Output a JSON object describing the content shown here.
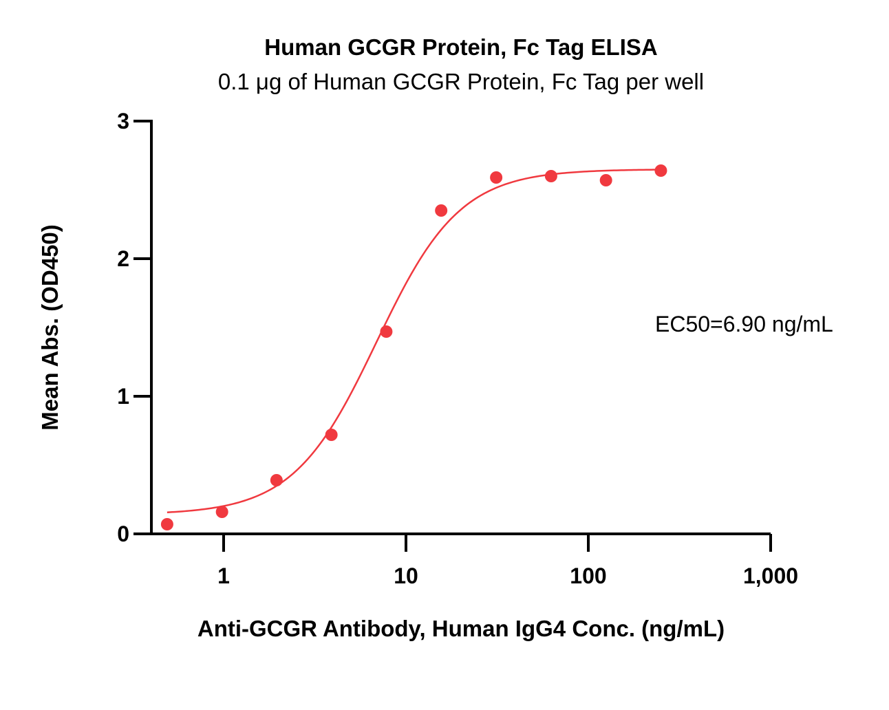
{
  "chart_data": {
    "type": "scatter",
    "title": "Human GCGR Protein, Fc Tag ELISA",
    "subtitle": "0.1 μg of Human GCGR Protein, Fc Tag per well",
    "xlabel": "Anti-GCGR Antibody, Human IgG4 Conc. (ng/mL)",
    "ylabel": "Mean Abs. (OD450)",
    "x_scale": "log",
    "xlim": [
      0.4,
      1000
    ],
    "ylim": [
      0,
      3
    ],
    "x_ticks": [
      1,
      10,
      100,
      1000
    ],
    "x_tick_labels": [
      "1",
      "10",
      "100",
      "1,000"
    ],
    "y_ticks": [
      0,
      1,
      2,
      3
    ],
    "y_tick_labels": [
      "0",
      "1",
      "2",
      "3"
    ],
    "series": [
      {
        "color": "#f0393f",
        "x": [
          0.49,
          0.98,
          1.95,
          3.9,
          7.8,
          15.6,
          31.25,
          62.5,
          125,
          250
        ],
        "y": [
          0.07,
          0.16,
          0.39,
          0.72,
          1.47,
          2.35,
          2.59,
          2.6,
          2.57,
          2.64
        ]
      }
    ],
    "fit": {
      "type": "4PL",
      "bottom": 0.14,
      "top": 2.65,
      "ec50": 6.9,
      "hill": 1.9
    },
    "annotation": "EC50=6.90 ng/mL",
    "grid": false
  }
}
